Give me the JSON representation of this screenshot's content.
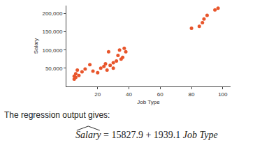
{
  "chart_data": {
    "type": "scatter",
    "x": [
      5,
      5,
      6,
      7,
      6,
      8,
      10,
      12,
      15,
      17,
      20,
      22,
      24,
      25,
      26,
      27,
      28,
      30,
      30,
      32,
      33,
      34,
      35,
      36,
      37,
      38,
      80,
      85,
      87,
      88,
      90,
      95,
      97
    ],
    "values": [
      20000,
      28000,
      35000,
      45000,
      25000,
      30000,
      40000,
      48000,
      60000,
      42000,
      38000,
      50000,
      55000,
      62000,
      45000,
      95000,
      58000,
      65000,
      50000,
      70000,
      85000,
      100000,
      75000,
      80000,
      105000,
      95000,
      160000,
      165000,
      175000,
      185000,
      195000,
      210000,
      215000
    ],
    "color": "#e8552b",
    "marker": "circle",
    "xlabel": "Job Type",
    "ylabel": "Salary",
    "xlim": [
      0,
      105
    ],
    "ylim": [
      0,
      222000
    ],
    "xticks": [
      20,
      40,
      60,
      80,
      100
    ],
    "yticks": [
      {
        "value": 50000,
        "label": "50,000"
      },
      {
        "value": 100000,
        "label": "100,000"
      },
      {
        "value": 150000,
        "label": "150,000"
      },
      {
        "value": 200000,
        "label": "200,000"
      }
    ],
    "grid": false
  },
  "text": {
    "caption": "The regression output gives:",
    "equation": {
      "lhs": "Salary",
      "rhs": "= 15827.9 + 1939.1",
      "variable": "Job Type"
    }
  }
}
